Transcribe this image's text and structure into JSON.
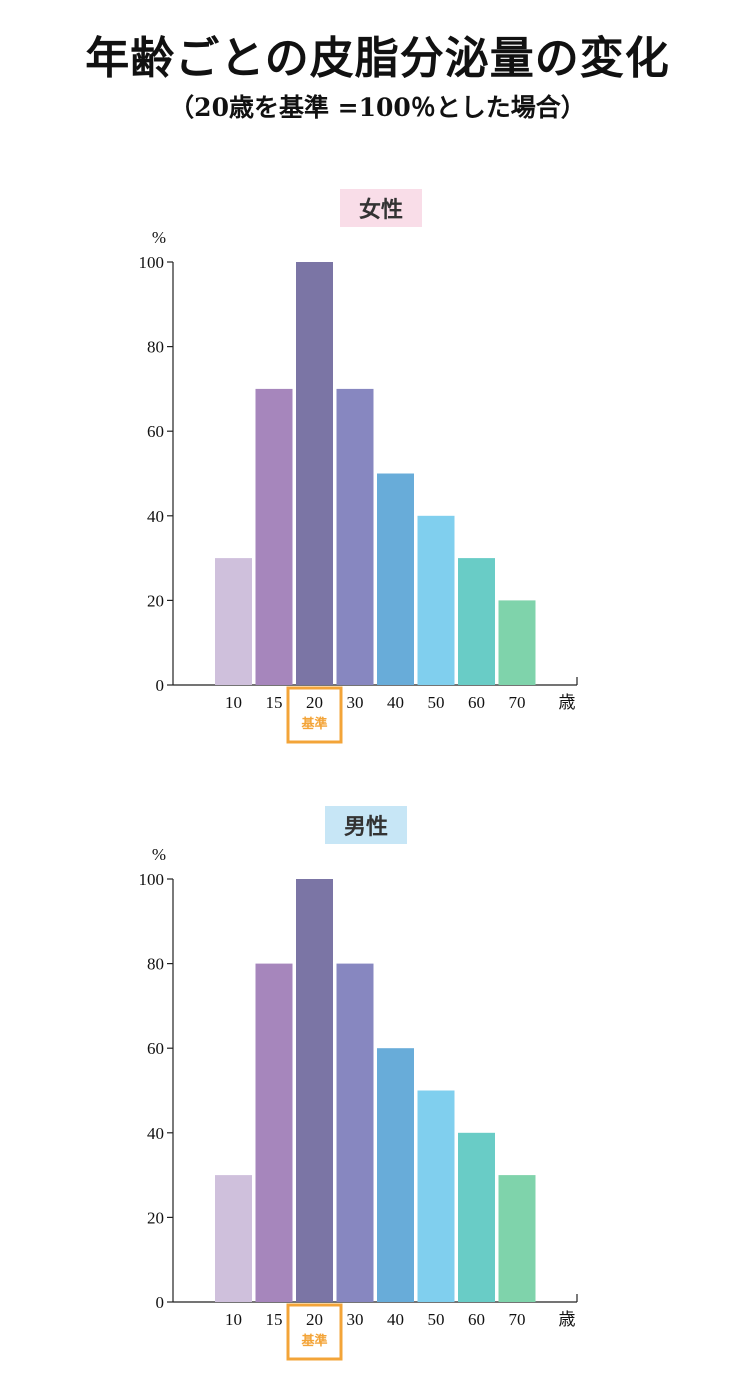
{
  "title": "年齢ごとの皮脂分泌量の変化",
  "subtitle": "（20歳を基準 =100％とした場合）",
  "colors": {
    "bars": [
      "#cfc0dc",
      "#a686bc",
      "#7b75a5",
      "#8787c0",
      "#68acd9",
      "#80cfee",
      "#69ccc6",
      "#7fd3ab"
    ],
    "female_label_bg": "#f9dde8",
    "male_label_bg": "#c7e6f6",
    "baseline_box": "#f3a438"
  },
  "chart_data": [
    {
      "type": "bar",
      "title": "女性",
      "ylabel": "%",
      "xlabel": "歳",
      "ylim": [
        0,
        100
      ],
      "yticks": [
        0,
        20,
        40,
        60,
        80,
        100
      ],
      "categories": [
        "10",
        "15",
        "20",
        "30",
        "40",
        "50",
        "60",
        "70"
      ],
      "values": [
        30,
        70,
        100,
        70,
        50,
        40,
        30,
        20
      ],
      "baseline_category": "20",
      "baseline_label": "基準"
    },
    {
      "type": "bar",
      "title": "男性",
      "ylabel": "%",
      "xlabel": "歳",
      "ylim": [
        0,
        100
      ],
      "yticks": [
        0,
        20,
        40,
        60,
        80,
        100
      ],
      "categories": [
        "10",
        "15",
        "20",
        "30",
        "40",
        "50",
        "60",
        "70"
      ],
      "values": [
        30,
        80,
        100,
        80,
        60,
        50,
        40,
        30
      ],
      "baseline_category": "20",
      "baseline_label": "基準"
    }
  ]
}
